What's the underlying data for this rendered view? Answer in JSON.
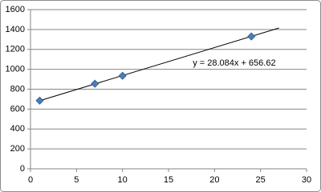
{
  "chart_data": {
    "type": "scatter",
    "series": [
      {
        "color": "#4a7ebb",
        "x": [
          1,
          7,
          10,
          24
        ],
        "values": [
          685,
          855,
          935,
          1330
        ]
      }
    ],
    "trendline": {
      "slope": 28.084,
      "intercept": 656.62,
      "x": [
        1,
        27
      ],
      "label": "y = 28.084x + 656.62"
    },
    "xlim": [
      0,
      30
    ],
    "xticks": [
      0,
      5,
      10,
      15,
      20,
      25,
      30
    ],
    "ylim": [
      0,
      1600
    ],
    "yticks": [
      0,
      200,
      400,
      600,
      800,
      1000,
      1200,
      1400,
      1600
    ],
    "grid": true
  }
}
